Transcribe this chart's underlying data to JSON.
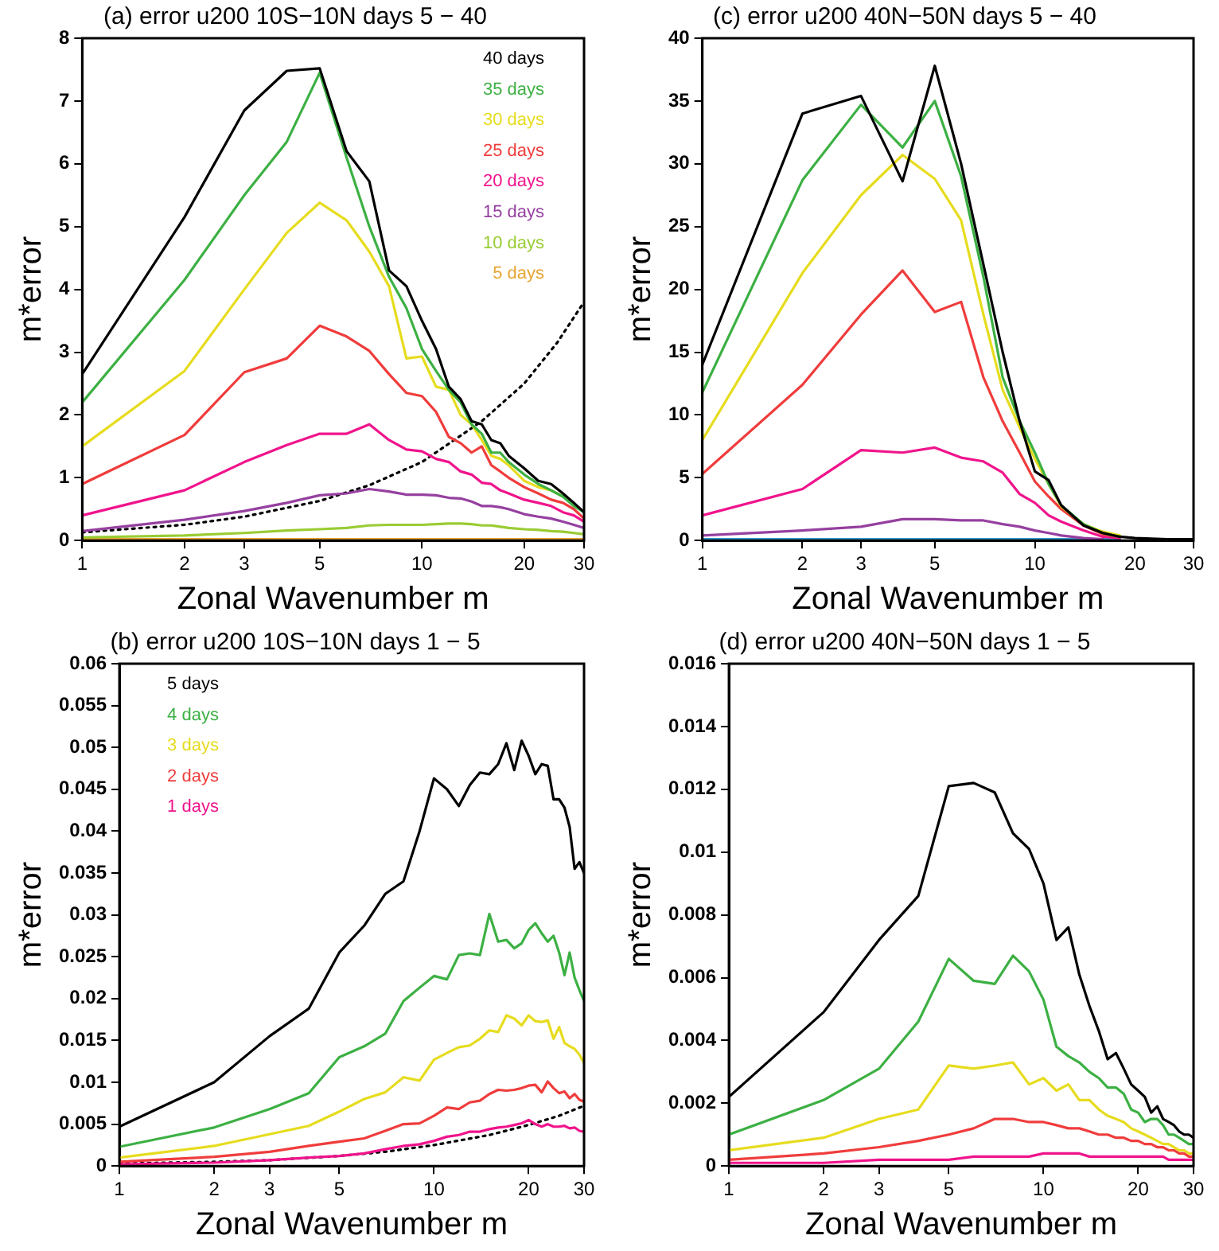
{
  "chart_data": [
    {
      "type": "line",
      "title": "(a) error u200 10S−10N days 5 − 40",
      "xlabel": "Zonal Wavenumber m",
      "ylabel": "m*error",
      "log": "x",
      "grid": false,
      "marker": "none",
      "legend": "top right",
      "x": [
        1,
        2,
        3,
        4,
        5,
        6,
        7,
        8,
        9,
        10,
        11,
        12,
        13,
        14,
        15,
        16,
        17,
        18,
        20,
        22,
        24,
        26,
        28,
        30
      ],
      "xlim": [
        1,
        30
      ],
      "xticks": [
        1,
        2,
        3,
        5,
        10,
        20,
        30
      ],
      "ylim": [
        0,
        8
      ],
      "yticks": [
        0,
        1,
        2,
        3,
        4,
        5,
        6,
        7,
        8
      ],
      "series": [
        {
          "name": "40 days",
          "color": "#000000",
          "values": [
            2.65,
            5.15,
            6.85,
            7.48,
            7.52,
            6.2,
            5.72,
            4.3,
            4.05,
            3.5,
            3.05,
            2.45,
            2.25,
            1.9,
            1.85,
            1.6,
            1.55,
            1.35,
            1.15,
            0.95,
            0.9,
            0.75,
            0.6,
            0.45
          ]
        },
        {
          "name": "35 days",
          "color": "#3cb043",
          "values": [
            2.2,
            4.15,
            5.5,
            6.35,
            7.45,
            6.1,
            5.0,
            4.2,
            3.7,
            3.05,
            2.7,
            2.4,
            2.2,
            1.85,
            1.7,
            1.4,
            1.4,
            1.25,
            1.05,
            0.9,
            0.8,
            0.7,
            0.55,
            0.45
          ]
        },
        {
          "name": "30 days",
          "color": "#e6dc1e",
          "values": [
            1.5,
            2.7,
            4.0,
            4.9,
            5.38,
            5.1,
            4.6,
            4.05,
            2.9,
            2.93,
            2.45,
            2.4,
            2.0,
            1.85,
            1.6,
            1.35,
            1.3,
            1.2,
            0.95,
            0.85,
            0.8,
            0.7,
            null,
            null
          ]
        },
        {
          "name": "25 days",
          "color": "#f03c3c",
          "values": [
            0.9,
            1.68,
            2.68,
            2.9,
            3.42,
            3.25,
            3.02,
            2.65,
            2.35,
            2.3,
            2.05,
            1.65,
            1.55,
            1.4,
            1.5,
            1.2,
            1.1,
            1.0,
            0.85,
            0.75,
            0.65,
            0.6,
            0.5,
            0.35
          ]
        },
        {
          "name": "20 days",
          "color": "#f0148c",
          "values": [
            0.4,
            0.8,
            1.25,
            1.52,
            1.7,
            1.7,
            1.85,
            1.6,
            1.45,
            1.42,
            1.3,
            1.25,
            1.1,
            1.05,
            0.92,
            0.9,
            0.8,
            0.75,
            0.65,
            0.6,
            0.55,
            0.45,
            0.4,
            0.3
          ]
        },
        {
          "name": "15 days",
          "color": "#9640a0",
          "values": [
            0.15,
            0.33,
            0.47,
            0.6,
            0.72,
            0.75,
            0.82,
            0.78,
            0.73,
            0.73,
            0.72,
            0.68,
            0.67,
            0.62,
            0.55,
            0.55,
            0.53,
            0.5,
            0.42,
            0.38,
            0.35,
            0.3,
            0.25,
            0.2
          ]
        },
        {
          "name": "10 days",
          "color": "#99cc33",
          "values": [
            0.05,
            0.08,
            0.12,
            0.16,
            0.18,
            0.2,
            0.24,
            0.25,
            0.25,
            0.25,
            0.26,
            0.27,
            0.27,
            0.26,
            0.24,
            0.24,
            0.22,
            0.2,
            0.18,
            0.17,
            0.15,
            0.14,
            0.12,
            0.1
          ]
        },
        {
          "name": "5 days",
          "color": "#e6a533",
          "values": [
            0.02,
            0.02,
            0.02,
            0.02,
            0.02,
            0.02,
            0.02,
            0.02,
            0.02,
            0.02,
            0.02,
            0.02,
            0.02,
            0.02,
            0.02,
            0.02,
            0.02,
            0.02,
            0.02,
            0.02,
            0.02,
            0.02,
            0.02,
            0.02
          ]
        },
        {
          "color": "#000000",
          "line_style": "dotted",
          "x": [
            1,
            2,
            3,
            5,
            7,
            10,
            15,
            20,
            25,
            30
          ],
          "values": [
            0.13,
            0.25,
            0.38,
            0.63,
            0.88,
            1.25,
            1.9,
            2.5,
            3.15,
            3.8
          ]
        }
      ]
    },
    {
      "type": "line",
      "title": "(c) error u200 40N−50N days 5 − 40",
      "xlabel": "Zonal Wavenumber m",
      "ylabel": "m*error",
      "log": "x",
      "grid": false,
      "marker": "none",
      "x": [
        1,
        2,
        3,
        4,
        5,
        6,
        7,
        8,
        9,
        10,
        11,
        12,
        14,
        16,
        18,
        20,
        25,
        30
      ],
      "xlim": [
        1,
        30
      ],
      "xticks": [
        1,
        2,
        3,
        5,
        10,
        20,
        30
      ],
      "ylim": [
        0,
        40
      ],
      "yticks": [
        0,
        5,
        10,
        15,
        20,
        25,
        30,
        35,
        40
      ],
      "series": [
        {
          "color": "#000000",
          "values": [
            14,
            34,
            35.4,
            28.6,
            37.8,
            30,
            22,
            15,
            9.5,
            5.5,
            4.8,
            2.8,
            1.2,
            0.6,
            0.3,
            0.2,
            0.1,
            0.1
          ]
        },
        {
          "color": "#3cb043",
          "values": [
            11.8,
            28.7,
            34.7,
            31.3,
            35,
            29,
            21,
            13,
            9.5,
            7,
            4.5,
            2.8,
            1.3,
            0.6,
            0.3,
            null,
            null,
            null
          ]
        },
        {
          "color": "#e6dc1e",
          "values": [
            8,
            21.3,
            27.5,
            30.7,
            28.8,
            25.5,
            18,
            12,
            9,
            6.5,
            4.5,
            2.7,
            1.3,
            0.7,
            0.4,
            null,
            null,
            null
          ]
        },
        {
          "color": "#f03c3c",
          "values": [
            5.3,
            12.4,
            18,
            21.5,
            18.2,
            19,
            13,
            9.5,
            7,
            4.7,
            3.5,
            2.5,
            1.2,
            0.5,
            0.3,
            null,
            null,
            null
          ]
        },
        {
          "color": "#f0148c",
          "values": [
            2,
            4.1,
            7.2,
            7,
            7.4,
            6.6,
            6.3,
            5.4,
            3.7,
            3.0,
            2.0,
            1.5,
            0.8,
            0.3,
            0.2,
            null,
            null,
            null
          ]
        },
        {
          "color": "#9640a0",
          "values": [
            0.4,
            0.8,
            1.1,
            1.7,
            1.7,
            1.6,
            1.6,
            1.3,
            1.1,
            0.8,
            0.6,
            0.4,
            0.2,
            0.1,
            null,
            null,
            null,
            null
          ]
        },
        {
          "color": "#3399cc",
          "values": [
            0.1,
            0.1,
            0.1,
            0.1,
            0.1,
            0.1,
            0.1,
            0.1,
            0.1,
            0.1,
            0.1,
            0.1,
            0.1,
            0.1,
            0.1,
            null,
            null,
            null
          ]
        }
      ]
    },
    {
      "type": "line",
      "title": "(b) error u200 10S−10N days 1 − 5",
      "xlabel": "Zonal Wavenumber m",
      "ylabel": "m*error",
      "log": "x",
      "grid": false,
      "marker": "none",
      "legend": "top left",
      "x": [
        1,
        2,
        3,
        4,
        5,
        6,
        7,
        8,
        9,
        10,
        11,
        12,
        13,
        14,
        15,
        16,
        17,
        18,
        19,
        20,
        21,
        22,
        23,
        24,
        25,
        26,
        27,
        28,
        29,
        30
      ],
      "xlim": [
        1,
        30
      ],
      "xticks": [
        1,
        2,
        3,
        5,
        10,
        20,
        30
      ],
      "ylim": [
        0,
        0.06
      ],
      "yticks": [
        0,
        0.005,
        0.01,
        0.015,
        0.02,
        0.025,
        0.03,
        0.035,
        0.04,
        0.045,
        0.05,
        0.055,
        0.06
      ],
      "series": [
        {
          "name": "5 days",
          "color": "#000000",
          "values": [
            0.0047,
            0.01,
            0.0155,
            0.0188,
            0.0255,
            0.0287,
            0.0325,
            0.034,
            0.04,
            0.0463,
            0.045,
            0.043,
            0.0455,
            0.047,
            0.0468,
            0.048,
            0.0505,
            0.0473,
            0.0508,
            0.049,
            0.0468,
            0.048,
            0.0478,
            0.0438,
            0.0438,
            0.0428,
            0.0405,
            0.0355,
            0.0363,
            0.035
          ]
        },
        {
          "name": "4 days",
          "color": "#3cb043",
          "values": [
            0.0023,
            0.0046,
            0.0068,
            0.0087,
            0.013,
            0.0143,
            0.0158,
            0.0197,
            0.0213,
            0.0227,
            0.0223,
            0.0252,
            0.0254,
            0.0252,
            0.0301,
            0.0268,
            0.027,
            0.026,
            0.0266,
            0.0282,
            0.029,
            0.0278,
            0.0268,
            0.0275,
            0.0255,
            0.0228,
            0.0255,
            0.0225,
            0.021,
            0.0197
          ]
        },
        {
          "name": "3 days",
          "color": "#e6dc1e",
          "values": [
            0.001,
            0.0024,
            0.0038,
            0.0048,
            0.0065,
            0.008,
            0.0088,
            0.0106,
            0.0102,
            0.0127,
            0.0135,
            0.0142,
            0.0144,
            0.0152,
            0.0162,
            0.016,
            0.018,
            0.0176,
            0.0168,
            0.018,
            0.0173,
            0.0172,
            0.0174,
            0.0152,
            0.0166,
            0.0147,
            0.0143,
            0.014,
            0.0133,
            0.0123
          ]
        },
        {
          "name": "2 days",
          "color": "#f03c3c",
          "values": [
            0.0005,
            0.0011,
            0.0017,
            0.0024,
            0.0029,
            0.0033,
            0.0042,
            0.005,
            0.0051,
            0.006,
            0.007,
            0.0068,
            0.0076,
            0.0078,
            0.0086,
            0.0091,
            0.009,
            0.0091,
            0.0093,
            0.0096,
            0.0097,
            0.0088,
            0.0101,
            0.0093,
            0.0087,
            0.0089,
            0.0081,
            0.0086,
            0.0079,
            0.0077
          ]
        },
        {
          "name": "1 days",
          "color": "#f0148c",
          "values": [
            0.0002,
            0.0004,
            0.0007,
            0.001,
            0.0012,
            0.0015,
            0.002,
            0.0024,
            0.0026,
            0.003,
            0.0035,
            0.0037,
            0.0041,
            0.0041,
            0.0044,
            0.0046,
            0.0047,
            0.0049,
            0.0051,
            0.0055,
            0.005,
            0.0047,
            0.005,
            0.0047,
            0.0047,
            0.0048,
            0.0045,
            0.0046,
            0.0042,
            0.0041
          ]
        },
        {
          "color": "#000000",
          "line_style": "dotted",
          "x": [
            1,
            2,
            3,
            5,
            7,
            10,
            15,
            20,
            25,
            30
          ],
          "values": [
            0.0003,
            0.0005,
            0.0007,
            0.0012,
            0.0017,
            0.0025,
            0.0037,
            0.0049,
            0.006,
            0.0072
          ]
        }
      ]
    },
    {
      "type": "line",
      "title": "(d) error u200 40N−50N days 1 − 5",
      "xlabel": "Zonal Wavenumber m",
      "ylabel": "m*error",
      "log": "x",
      "grid": false,
      "marker": "none",
      "x": [
        1,
        2,
        3,
        4,
        5,
        6,
        7,
        8,
        9,
        10,
        11,
        12,
        13,
        14,
        15,
        16,
        17,
        18,
        19,
        20,
        21,
        22,
        23,
        24,
        25,
        26,
        27,
        28,
        29,
        30
      ],
      "xlim": [
        1,
        30
      ],
      "xticks": [
        1,
        2,
        3,
        5,
        10,
        20,
        30
      ],
      "ylim": [
        0,
        0.016
      ],
      "yticks": [
        0,
        0.002,
        0.004,
        0.006,
        0.008,
        0.01,
        0.012,
        0.014,
        0.016
      ],
      "series": [
        {
          "color": "#000000",
          "values": [
            0.0022,
            0.0049,
            0.0072,
            0.0086,
            0.0121,
            0.0122,
            0.0119,
            0.0106,
            0.0101,
            0.009,
            0.0072,
            0.0076,
            0.0061,
            0.0051,
            0.0043,
            0.0034,
            0.0036,
            0.0031,
            0.0026,
            0.0024,
            0.0022,
            0.0017,
            0.0019,
            0.0015,
            0.0014,
            0.0013,
            0.0011,
            0.001,
            0.001,
            0.0009
          ]
        },
        {
          "color": "#3cb043",
          "values": [
            0.001,
            0.0021,
            0.0031,
            0.0046,
            0.0066,
            0.0059,
            0.0058,
            0.0067,
            0.0062,
            0.0053,
            0.0038,
            0.0035,
            0.0033,
            0.003,
            0.0028,
            0.0025,
            0.0025,
            0.0023,
            0.0018,
            0.0017,
            0.0014,
            0.0015,
            0.0015,
            0.0013,
            0.001,
            0.001,
            0.0009,
            0.0008,
            0.0007,
            0.0007
          ]
        },
        {
          "color": "#e6dc1e",
          "values": [
            0.0005,
            0.0009,
            0.0015,
            0.0018,
            0.0032,
            0.0031,
            0.0032,
            0.0033,
            0.0026,
            0.0028,
            0.0024,
            0.0026,
            0.0021,
            0.0021,
            0.0018,
            0.0016,
            0.0015,
            0.0014,
            0.0012,
            0.0011,
            0.001,
            0.0009,
            0.0008,
            0.0007,
            0.0007,
            0.0006,
            0.0005,
            0.0005,
            0.0004,
            0.0004
          ]
        },
        {
          "color": "#f03c3c",
          "values": [
            0.0002,
            0.0004,
            0.0006,
            0.0008,
            0.001,
            0.0012,
            0.0015,
            0.0015,
            0.0014,
            0.0014,
            0.0013,
            0.0012,
            0.0012,
            0.0011,
            0.001,
            0.001,
            0.0009,
            0.0009,
            0.0008,
            0.0008,
            0.0007,
            0.0007,
            0.0006,
            0.0006,
            0.0005,
            0.0005,
            0.0004,
            0.0004,
            0.0003,
            0.0003
          ]
        },
        {
          "color": "#f0148c",
          "values": [
            0.0001,
            0.0001,
            0.0002,
            0.0002,
            0.0002,
            0.0003,
            0.0003,
            0.0003,
            0.0003,
            0.0004,
            0.0004,
            0.0004,
            0.0004,
            0.0003,
            0.0003,
            0.0003,
            0.0003,
            0.0003,
            0.0003,
            0.0003,
            0.0003,
            0.0003,
            0.0003,
            0.0003,
            0.0002,
            0.0002,
            0.0002,
            0.0002,
            0.0002,
            0.0002
          ]
        }
      ]
    }
  ]
}
